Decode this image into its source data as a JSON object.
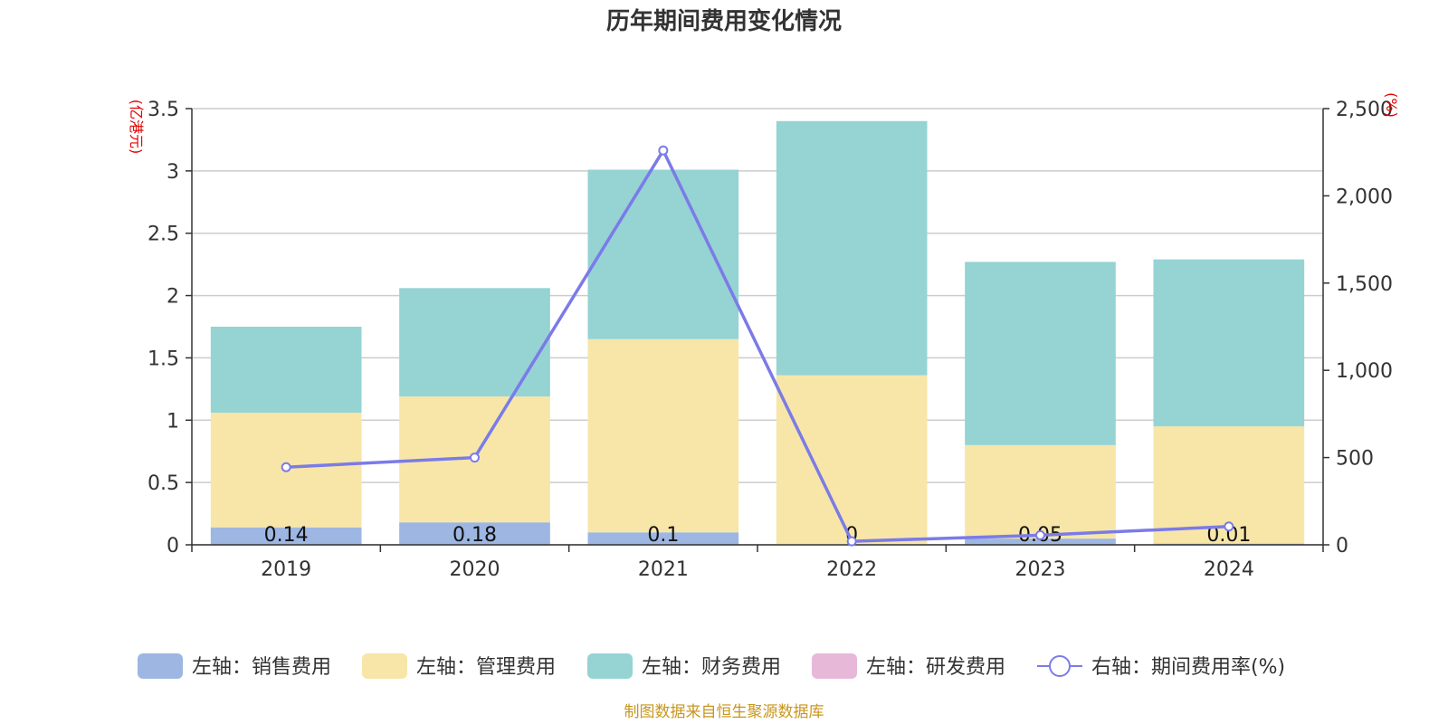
{
  "chart_data": {
    "type": "bar",
    "title": "历年期间费用变化情况",
    "categories": [
      "2019",
      "2020",
      "2021",
      "2022",
      "2023",
      "2024"
    ],
    "left_axis": {
      "unit": "(亿港元)",
      "ylim": [
        0,
        3.5
      ],
      "ticks": [
        "0",
        "0.5",
        "1",
        "1.5",
        "2",
        "2.5",
        "3",
        "3.5"
      ]
    },
    "right_axis": {
      "unit": "(%)",
      "ylim": [
        0,
        2500
      ],
      "ticks": [
        "0",
        "500",
        "1,000",
        "1,500",
        "2,000",
        "2,500"
      ]
    },
    "series": [
      {
        "name": "左轴：销售费用",
        "type": "bar",
        "axis": "left",
        "color": "#9db6e2",
        "values": [
          0.14,
          0.18,
          0.1,
          0,
          0.05,
          0.01
        ],
        "labels": [
          "0.14",
          "0.18",
          "0.1",
          "0",
          "0.05",
          "0.01"
        ]
      },
      {
        "name": "左轴：管理费用",
        "type": "bar",
        "axis": "left",
        "color": "#f7e6a8",
        "values": [
          0.92,
          1.01,
          1.55,
          1.36,
          0.75,
          0.94
        ]
      },
      {
        "name": "左轴：财务费用",
        "type": "bar",
        "axis": "left",
        "color": "#96d3d3",
        "values": [
          0.69,
          0.87,
          1.36,
          2.04,
          1.47,
          1.34
        ]
      },
      {
        "name": "左轴：研发费用",
        "type": "bar",
        "axis": "left",
        "color": "#e8b8d8",
        "values": [
          0,
          0,
          0,
          0,
          0,
          0
        ]
      },
      {
        "name": "右轴：期间费用率(%)",
        "type": "line",
        "axis": "right",
        "color": "#7b7be8",
        "values": [
          445,
          500,
          2260,
          20,
          55,
          105
        ]
      }
    ],
    "grid": true,
    "legend_position": "bottom",
    "source": "制图数据来自恒生聚源数据库"
  }
}
